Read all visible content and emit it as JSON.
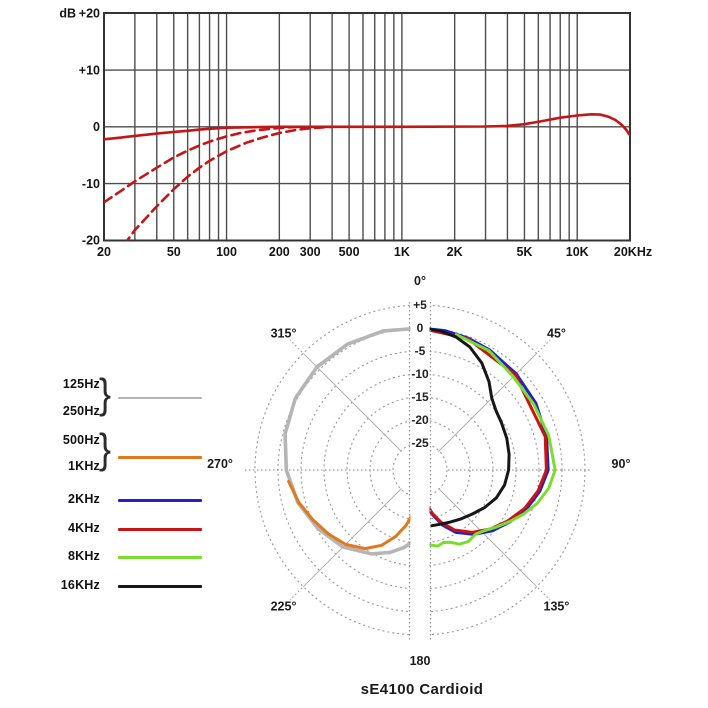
{
  "caption": {
    "text": "sE4100 Cardioid"
  },
  "legend": {
    "groups": [
      {
        "labels": [
          "125Hz",
          "250Hz"
        ],
        "brace": true,
        "color": "#b5b5b5",
        "thickness": 2.5
      },
      {
        "labels": [
          "500Hz",
          "1KHz"
        ],
        "brace": true,
        "color": "#e0791b",
        "thickness": 3
      },
      {
        "labels": [
          "2KHz"
        ],
        "brace": false,
        "color": "#2020cc",
        "thickness": 3
      },
      {
        "labels": [
          "4KHz"
        ],
        "brace": false,
        "color": "#cc1313",
        "thickness": 3
      },
      {
        "labels": [
          "8KHz"
        ],
        "brace": false,
        "color": "#79dd2e",
        "thickness": 3
      },
      {
        "labels": [
          "16KHz"
        ],
        "brace": false,
        "color": "#161616",
        "thickness": 3
      }
    ]
  },
  "chart_data": [
    {
      "id": "frequency_response",
      "type": "line",
      "x_scale": "log",
      "x_range": [
        20,
        20000
      ],
      "y_range": [
        -20,
        20
      ],
      "y_unit_label": "dB",
      "grid": true,
      "y_ticks": [
        {
          "label": "+20",
          "value": 20
        },
        {
          "label": "+10",
          "value": 10
        },
        {
          "label": "0",
          "value": 0
        },
        {
          "label": "-10",
          "value": -10
        },
        {
          "label": "-20",
          "value": -20
        }
      ],
      "x_ticks": [
        {
          "label": "20",
          "value": 20
        },
        {
          "label": "50",
          "value": 50
        },
        {
          "label": "100",
          "value": 100
        },
        {
          "label": "200",
          "value": 200
        },
        {
          "label": "300",
          "value": 300
        },
        {
          "label": "500",
          "value": 500
        },
        {
          "label": "1K",
          "value": 1000
        },
        {
          "label": "2K",
          "value": 2000
        },
        {
          "label": "5K",
          "value": 5000
        },
        {
          "label": "10K",
          "value": 10000
        },
        {
          "label": "20KHz",
          "value": 20000
        }
      ],
      "grid_freqs": [
        20,
        30,
        40,
        50,
        60,
        70,
        80,
        90,
        100,
        200,
        300,
        400,
        500,
        600,
        700,
        800,
        900,
        1000,
        2000,
        3000,
        4000,
        5000,
        6000,
        7000,
        8000,
        9000,
        10000,
        20000
      ],
      "line_color": "#c41616",
      "series": [
        {
          "name": "frequency response (flat)",
          "style": "solid",
          "points": [
            [
              20,
              -2.2
            ],
            [
              25,
              -1.9
            ],
            [
              30,
              -1.6
            ],
            [
              40,
              -1.2
            ],
            [
              50,
              -0.9
            ],
            [
              60,
              -0.7
            ],
            [
              70,
              -0.5
            ],
            [
              80,
              -0.35
            ],
            [
              100,
              -0.15
            ],
            [
              150,
              -0.05
            ],
            [
              200,
              0
            ],
            [
              1000,
              0
            ],
            [
              3000,
              0.05
            ],
            [
              4000,
              0.15
            ],
            [
              5000,
              0.45
            ],
            [
              6300,
              1.0
            ],
            [
              8000,
              1.6
            ],
            [
              10000,
              2.0
            ],
            [
              12000,
              2.2
            ],
            [
              13500,
              2.15
            ],
            [
              15000,
              1.8
            ],
            [
              16500,
              1.2
            ],
            [
              18000,
              0.3
            ],
            [
              19000,
              -0.5
            ],
            [
              20000,
              -1.5
            ]
          ]
        },
        {
          "name": "low-cut filter 1",
          "style": "dashed",
          "points": [
            [
              20,
              -13.3
            ],
            [
              25,
              -11.3
            ],
            [
              30,
              -9.6
            ],
            [
              40,
              -7.2
            ],
            [
              50,
              -5.4
            ],
            [
              60,
              -4.2
            ],
            [
              70,
              -3.3
            ],
            [
              80,
              -2.6
            ],
            [
              100,
              -1.7
            ],
            [
              120,
              -1.1
            ],
            [
              150,
              -0.6
            ],
            [
              200,
              -0.2
            ],
            [
              260,
              0
            ]
          ]
        },
        {
          "name": "low-cut filter 2",
          "style": "dashed",
          "points": [
            [
              26,
              -20.8
            ],
            [
              30,
              -18.2
            ],
            [
              40,
              -14.0
            ],
            [
              50,
              -11.0
            ],
            [
              60,
              -8.8
            ],
            [
              70,
              -7.2
            ],
            [
              80,
              -6.0
            ],
            [
              100,
              -4.3
            ],
            [
              130,
              -2.8
            ],
            [
              160,
              -1.9
            ],
            [
              200,
              -1.1
            ],
            [
              250,
              -0.55
            ],
            [
              300,
              -0.25
            ],
            [
              400,
              0
            ]
          ]
        }
      ]
    },
    {
      "id": "polar_pattern",
      "type": "polar",
      "db_step": 5,
      "rings": [
        {
          "label": "+5",
          "db": 5
        },
        {
          "label": "0",
          "db": 0
        },
        {
          "label": "-5",
          "db": -5
        },
        {
          "label": "-10",
          "db": -10
        },
        {
          "label": "-15",
          "db": -15
        },
        {
          "label": "-20",
          "db": -20
        },
        {
          "label": "-25",
          "db": -25
        }
      ],
      "angle_labels": [
        {
          "text": "0°",
          "angle": 0,
          "r": 189,
          "dy": 0
        },
        {
          "text": "45°",
          "angle": 45,
          "r": 193,
          "dy": 0
        },
        {
          "text": "90°",
          "angle": 90,
          "r": 201,
          "dy": -6
        },
        {
          "text": "135°",
          "angle": 135,
          "r": 193,
          "dy": 0
        },
        {
          "text": "180",
          "angle": 180,
          "r": 191,
          "dy": 0
        },
        {
          "text": "225°",
          "angle": 225,
          "r": 193,
          "dy": 0
        },
        {
          "text": "270°",
          "angle": 270,
          "r": 200,
          "dy": -6
        },
        {
          "text": "315°",
          "angle": 315,
          "r": 193,
          "dy": 0
        }
      ],
      "series": [
        {
          "name": "125Hz/250Hz",
          "color": "#b5b5b5",
          "width": 3.6,
          "points": [
            [
              0,
              0
            ],
            [
              -15,
              0.4
            ],
            [
              -30,
              0.7
            ],
            [
              -45,
              0.8
            ],
            [
              -60,
              0.4
            ],
            [
              -75,
              -0.5
            ],
            [
              -90,
              -1.8
            ],
            [
              -105,
              -3.4
            ],
            [
              -120,
              -5.3
            ],
            [
              -135,
              -7.2
            ],
            [
              -150,
              -9.8
            ],
            [
              -160,
              -11.8
            ],
            [
              -168,
              -13.6
            ],
            [
              -173,
              -14.9
            ],
            [
              -177,
              -15.4
            ]
          ]
        },
        {
          "name": "500Hz/1KHz",
          "color": "#e0791b",
          "width": 3,
          "points": [
            [
              -95,
              -2.2
            ],
            [
              -105,
              -3.6
            ],
            [
              -115,
              -5.2
            ],
            [
              -125,
              -6.6
            ],
            [
              -135,
              -8.0
            ],
            [
              -145,
              -10.0
            ],
            [
              -153,
              -12.5
            ],
            [
              -160,
              -15.5
            ],
            [
              -166,
              -18.5
            ],
            [
              -171,
              -21.5
            ],
            [
              -175,
              -24.0
            ]
          ]
        },
        {
          "name": "2KHz",
          "color": "#2020cc",
          "width": 3,
          "points": [
            [
              0,
              0
            ],
            [
              10,
              -0.1
            ],
            [
              20,
              -0.35
            ],
            [
              30,
              -0.7
            ],
            [
              45,
              -1.3
            ],
            [
              60,
              -1.8
            ],
            [
              75,
              -2.4
            ],
            [
              90,
              -3.0
            ],
            [
              100,
              -4.4
            ],
            [
              110,
              -6.2
            ],
            [
              120,
              -8.3
            ],
            [
              130,
              -10.3
            ],
            [
              140,
              -12.6
            ],
            [
              150,
              -15.2
            ],
            [
              158,
              -18.0
            ],
            [
              165,
              -21.0
            ],
            [
              170,
              -23.5
            ],
            [
              174,
              -25.3
            ]
          ]
        },
        {
          "name": "4KHz",
          "color": "#cc1313",
          "width": 3,
          "points": [
            [
              0,
              0
            ],
            [
              20,
              -0.5
            ],
            [
              45,
              -1.6
            ],
            [
              75,
              -2.7
            ],
            [
              90,
              -3.4
            ],
            [
              100,
              -4.8
            ],
            [
              110,
              -6.6
            ],
            [
              120,
              -8.8
            ],
            [
              130,
              -10.9
            ],
            [
              140,
              -13.2
            ],
            [
              150,
              -15.8
            ],
            [
              158,
              -18.6
            ],
            [
              164,
              -21.0
            ],
            [
              169,
              -23.3
            ],
            [
              172,
              -24.6
            ]
          ]
        },
        {
          "name": "8KHz",
          "color": "#79dd2e",
          "width": 3,
          "points": [
            [
              15,
              -0.4
            ],
            [
              30,
              -0.9
            ],
            [
              45,
              -2.2
            ],
            [
              60,
              -2.3
            ],
            [
              75,
              -1.9
            ],
            [
              90,
              -1.5
            ],
            [
              98,
              -2.6
            ],
            [
              106,
              -4.4
            ],
            [
              113,
              -6.4
            ],
            [
              120,
              -8.4
            ],
            [
              127,
              -10.2
            ],
            [
              133,
              -11.6
            ],
            [
              139,
              -12.4
            ],
            [
              146,
              -12.1
            ],
            [
              152,
              -12.6
            ],
            [
              157,
              -13.8
            ],
            [
              162,
              -14.3
            ],
            [
              167,
              -13.9
            ],
            [
              172,
              -14.4
            ],
            [
              177,
              -14.6
            ]
          ]
        },
        {
          "name": "16KHz",
          "color": "#161616",
          "width": 3,
          "points": [
            [
              0,
              0
            ],
            [
              8,
              -0.3
            ],
            [
              15,
              -0.9
            ],
            [
              22,
              -2.0
            ],
            [
              30,
              -4.0
            ],
            [
              38,
              -6.5
            ],
            [
              45,
              -8.8
            ],
            [
              52,
              -9.9
            ],
            [
              60,
              -10.4
            ],
            [
              70,
              -10.8
            ],
            [
              80,
              -11.2
            ],
            [
              90,
              -11.6
            ],
            [
              100,
              -12.2
            ],
            [
              110,
              -13.2
            ],
            [
              120,
              -14.6
            ],
            [
              130,
              -16.0
            ],
            [
              140,
              -17.0
            ],
            [
              150,
              -17.8
            ],
            [
              160,
              -18.3
            ],
            [
              168,
              -18.5
            ]
          ]
        }
      ]
    }
  ]
}
